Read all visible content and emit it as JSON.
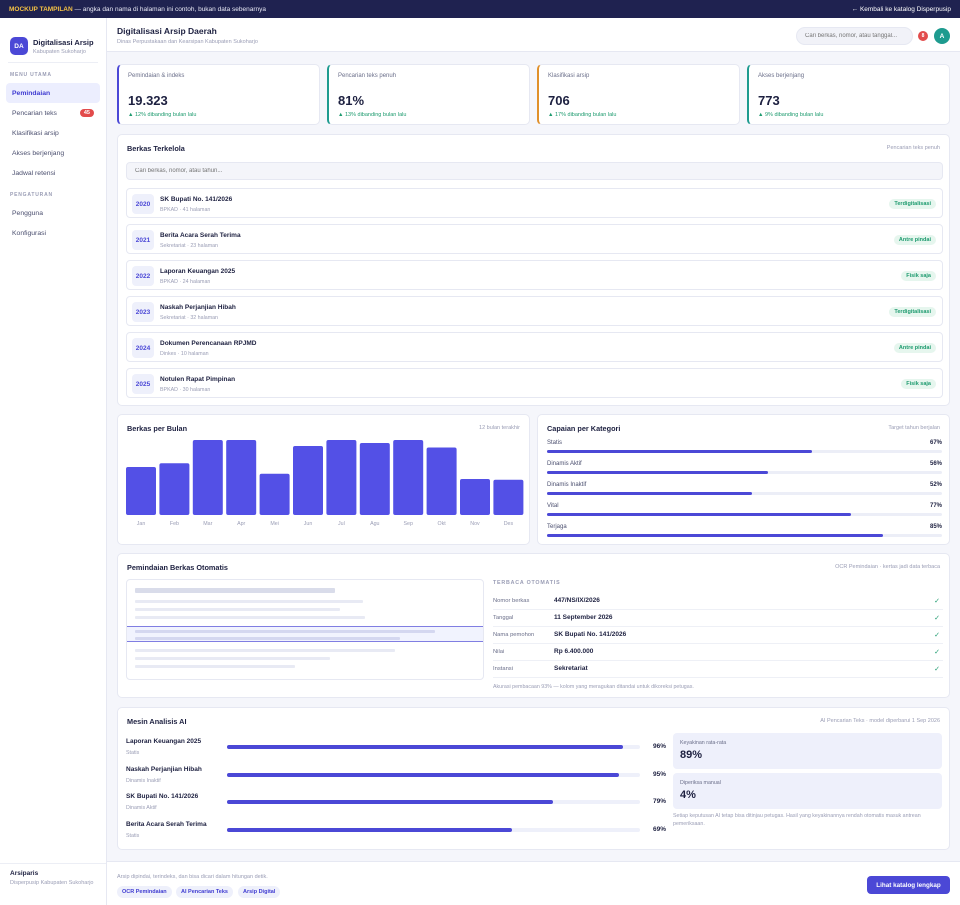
{
  "banner": {
    "tag": "MOCKUP TAMPILAN",
    "text": " — angka dan nama di halaman ini contoh, bukan data sebenarnya",
    "back_link": "← Kembali ke katalog Disperpusip"
  },
  "sidebar": {
    "logo": "DA",
    "title": "Digitalisasi Arsip",
    "subtitle": "Kabupaten Sukoharjo",
    "section_main": "MENU UTAMA",
    "items_main": [
      {
        "label": "Pemindaian"
      },
      {
        "label": "Pencarian teks",
        "badge": "45"
      },
      {
        "label": "Klasifikasi arsip"
      },
      {
        "label": "Akses berjenjang"
      },
      {
        "label": "Jadwal retensi"
      }
    ],
    "section_settings": "PENGATURAN",
    "items_settings": [
      {
        "label": "Pengguna"
      },
      {
        "label": "Konfigurasi"
      }
    ],
    "footer_title": "Arsiparis",
    "footer_sub": "Disperpusip Kabupaten Sukoharjo"
  },
  "header": {
    "title": "Digitalisasi Arsip Daerah",
    "subtitle": "Dinas Perpustakaan dan Kearsipan Kabupaten Sukoharjo",
    "search_placeholder": "Cari berkas, nomor, atau tanggal...",
    "notif_count": "8",
    "avatar": "A"
  },
  "stats": [
    {
      "label": "Pemindaian & indeks",
      "value": "19.323",
      "change": "▲ 12% dibanding bulan lalu",
      "color": "#4b48d6"
    },
    {
      "label": "Pencarian teks penuh",
      "value": "81%",
      "change": "▲ 13% dibanding bulan lalu",
      "color": "#1e9b8f"
    },
    {
      "label": "Klasifikasi arsip",
      "value": "706",
      "change": "▲ 17% dibanding bulan lalu",
      "color": "#e0902a"
    },
    {
      "label": "Akses berjenjang",
      "value": "773",
      "change": "▲ 9% dibanding bulan lalu",
      "color": "#1e9b8f"
    }
  ],
  "berkas": {
    "title": "Berkas Terkelola",
    "note": "Pencarian teks penuh",
    "search_placeholder": "Cari berkas, nomor, atau tahun...",
    "rows": [
      {
        "year": "2020",
        "title": "SK Bupati No. 141/2026",
        "sub": "BPKAD · 41 halaman",
        "status": "Terdigitalisasi"
      },
      {
        "year": "2021",
        "title": "Berita Acara Serah Terima",
        "sub": "Sekretariat · 23 halaman",
        "status": "Antre pindai"
      },
      {
        "year": "2022",
        "title": "Laporan Keuangan 2025",
        "sub": "BPKAD · 24 halaman",
        "status": "Fisik saja"
      },
      {
        "year": "2023",
        "title": "Naskah Perjanjian Hibah",
        "sub": "Sekretariat · 32 halaman",
        "status": "Terdigitalisasi"
      },
      {
        "year": "2024",
        "title": "Dokumen Perencanaan RPJMD",
        "sub": "Dinkes · 10 halaman",
        "status": "Antre pindai"
      },
      {
        "year": "2025",
        "title": "Notulen Rapat Pimpinan",
        "sub": "BPKAD · 30 halaman",
        "status": "Fisik saja"
      }
    ]
  },
  "bulan": {
    "title": "Berkas per Bulan",
    "note": "12 bulan terakhir"
  },
  "chart_data": {
    "type": "bar",
    "title": "Berkas per Bulan",
    "categories": [
      "Jan",
      "Feb",
      "Mar",
      "Apr",
      "Mei",
      "Jun",
      "Jul",
      "Agu",
      "Sep",
      "Okt",
      "Nov",
      "Des"
    ],
    "values": [
      64,
      69,
      100,
      100,
      55,
      92,
      100,
      96,
      100,
      90,
      48,
      47
    ],
    "ylim": [
      0,
      100
    ],
    "grid": false,
    "color": "#5350e6"
  },
  "capaian": {
    "title": "Capaian per Kategori",
    "note": "Target tahun berjalan",
    "items": [
      {
        "name": "Statis",
        "value": 67,
        "label": "67%"
      },
      {
        "name": "Dinamis Aktif",
        "value": 56,
        "label": "56%"
      },
      {
        "name": "Dinamis Inaktif",
        "value": 52,
        "label": "52%"
      },
      {
        "name": "Vital",
        "value": 77,
        "label": "77%"
      },
      {
        "name": "Terjaga",
        "value": 85,
        "label": "85%"
      }
    ]
  },
  "ocr": {
    "title": "Pemindaian Berkas Otomatis",
    "note": "OCR Pemindaian · kertas jadi data terbaca",
    "head": "TERBACA OTOMATIS",
    "fields": [
      {
        "key": "Nomor berkas",
        "value": "447/NS/IX/2026"
      },
      {
        "key": "Tanggal",
        "value": "11 September 2026"
      },
      {
        "key": "Nama pemohon",
        "value": "SK Bupati No. 141/2026"
      },
      {
        "key": "Nilai",
        "value": "Rp 6.400.000"
      },
      {
        "key": "Instansi",
        "value": "Sekretariat"
      }
    ],
    "check": "✓",
    "foot": "Akurasi pembacaan 93% — kolom yang meragukan ditandai untuk dikoreksi petugas."
  },
  "ai": {
    "title": "Mesin Analisis AI",
    "note": "AI Pencarian Teks · model diperbarui 1 Sep 2026",
    "rows": [
      {
        "name": "Laporan Keuangan 2025",
        "sub": "Statis",
        "value": 96,
        "label": "96%"
      },
      {
        "name": "Naskah Perjanjian Hibah",
        "sub": "Dinamis Inaktif",
        "value": 95,
        "label": "95%"
      },
      {
        "name": "SK Bupati No. 141/2026",
        "sub": "Dinamis Aktif",
        "value": 79,
        "label": "79%"
      },
      {
        "name": "Berita Acara Serah Terima",
        "sub": "Statis",
        "value": 69,
        "label": "69%"
      }
    ],
    "mini": [
      {
        "label": "Keyakinan rata-rata",
        "value": "89%"
      },
      {
        "label": "Diperiksa manual",
        "value": "4%"
      }
    ],
    "footnote": "Setiap keputusan AI tetap bisa ditinjau petugas. Hasil yang keyakinannya rendah otomatis masuk antrean pemeriksaan."
  },
  "footer": {
    "text": "Arsip dipindai, terindeks, dan bisa dicari dalam hitungan detik.",
    "chips": [
      "OCR Pemindaian",
      "AI Pencarian Teks",
      "Arsip Digital"
    ],
    "cta": "Lihat katalog lengkap"
  }
}
